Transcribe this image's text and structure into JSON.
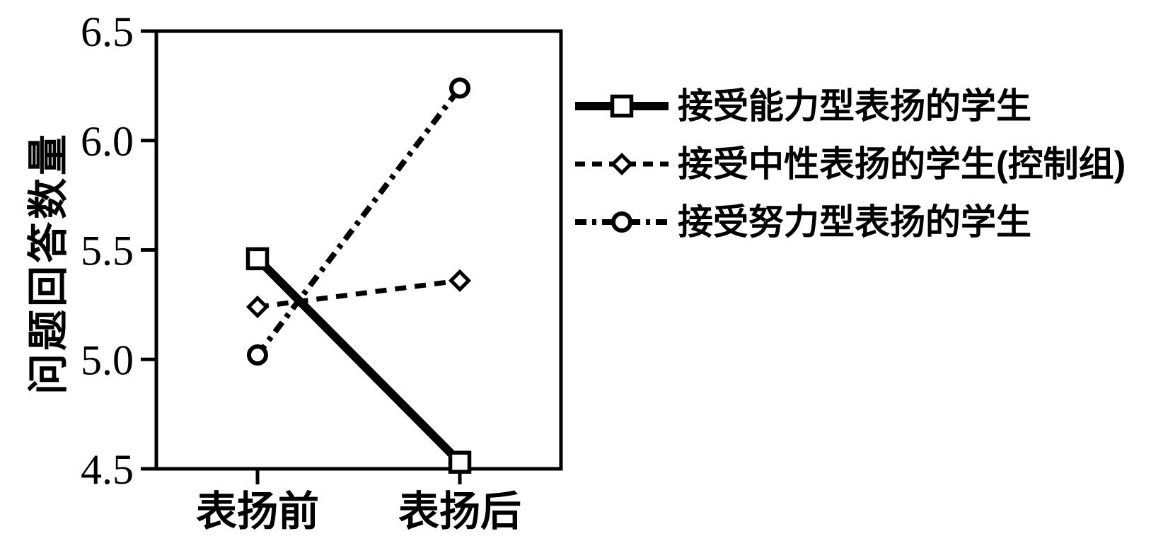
{
  "chart_data": {
    "type": "line",
    "title": "",
    "xlabel": "",
    "ylabel": "问题回答数量",
    "categories": [
      "表扬前",
      "表扬后"
    ],
    "ylim": [
      4.5,
      6.5
    ],
    "yticks": [
      "4.5",
      "5.0",
      "5.5",
      "6.0",
      "6.5"
    ],
    "grid": false,
    "legend_position": "right",
    "series": [
      {
        "name": "接受能力型表扬的学生",
        "line_style": "solid",
        "marker": "square",
        "values": [
          5.46,
          4.53
        ]
      },
      {
        "name": "接受中性表扬的学生(控制组)",
        "line_style": "dashed",
        "marker": "diamond",
        "values": [
          5.24,
          5.36
        ]
      },
      {
        "name": "接受努力型表扬的学生",
        "line_style": "dash-dot",
        "marker": "circle",
        "values": [
          5.02,
          6.24
        ]
      }
    ],
    "colors": {
      "foreground": "#000000",
      "background": "#ffffff"
    }
  }
}
